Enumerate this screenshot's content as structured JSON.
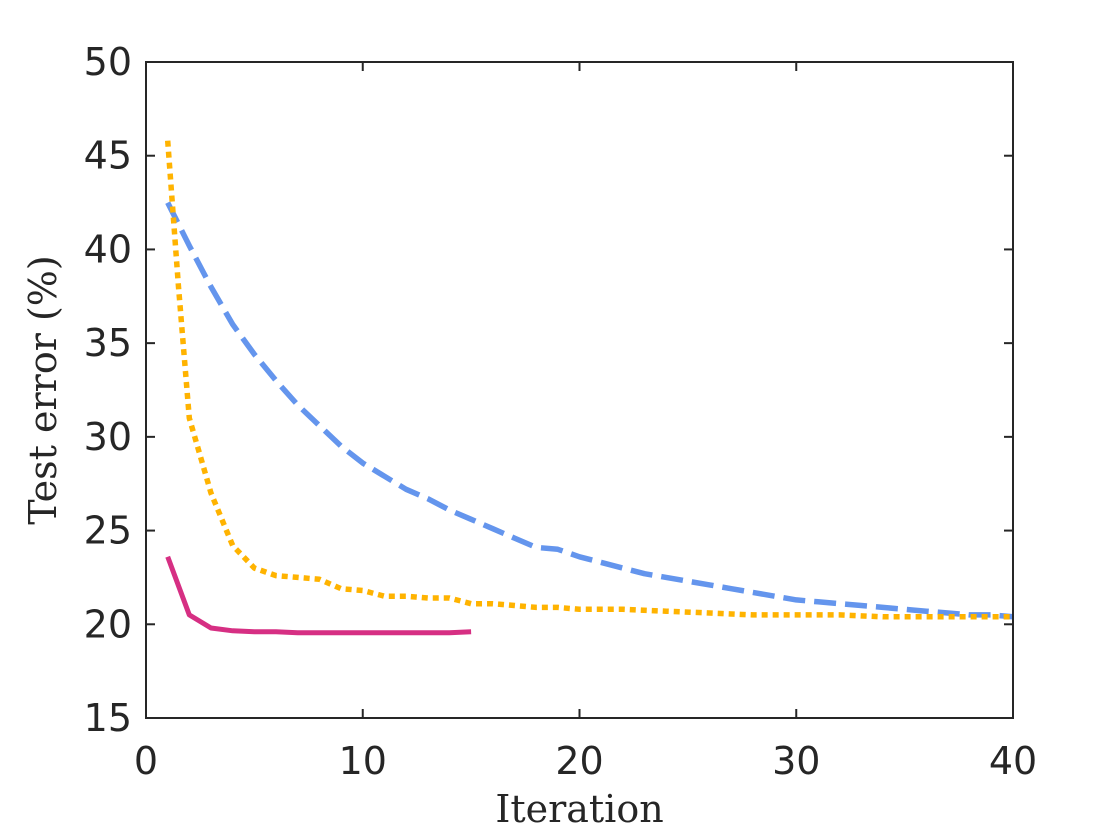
{
  "chart_data": {
    "type": "line",
    "title": "",
    "xlabel": "Iteration",
    "ylabel": "Test error (%)",
    "xlim": [
      0,
      40
    ],
    "ylim": [
      15,
      50
    ],
    "xticks": [
      "0",
      "10",
      "20",
      "30",
      "40"
    ],
    "yticks": [
      "15",
      "20",
      "25",
      "30",
      "35",
      "40",
      "45",
      "50"
    ],
    "grid": false,
    "legend": "none",
    "series": [
      {
        "color": "#6495ED",
        "dash": "dashed",
        "x": [
          1,
          2,
          3,
          4,
          5,
          6,
          7,
          8,
          9,
          10,
          11,
          12,
          13,
          14,
          15,
          16,
          17,
          18,
          19,
          20,
          21,
          22,
          23,
          24,
          25,
          26,
          27,
          28,
          29,
          30,
          31,
          32,
          33,
          34,
          35,
          36,
          37,
          38,
          39,
          40
        ],
        "y": [
          42.5,
          40.2,
          38,
          36,
          34.4,
          33,
          31.7,
          30.6,
          29.5,
          28.6,
          27.9,
          27.2,
          26.7,
          26.1,
          25.6,
          25.1,
          24.6,
          24.1,
          24,
          23.6,
          23.3,
          23,
          22.7,
          22.5,
          22.3,
          22.1,
          21.9,
          21.7,
          21.5,
          21.3,
          21.2,
          21.1,
          21,
          20.9,
          20.8,
          20.7,
          20.6,
          20.5,
          20.5,
          20.4
        ]
      },
      {
        "color": "#FFB300",
        "dash": "dotted",
        "x": [
          1,
          1.5,
          2,
          3,
          4,
          5,
          6,
          7,
          8,
          9,
          10,
          11,
          12,
          13,
          14,
          15,
          16,
          17,
          18,
          19,
          20,
          22,
          24,
          26,
          28,
          30,
          32,
          34,
          36,
          38,
          40
        ],
        "y": [
          45.8,
          38,
          31,
          27,
          24.2,
          23,
          22.6,
          22.5,
          22.4,
          21.9,
          21.8,
          21.5,
          21.5,
          21.4,
          21.4,
          21.1,
          21.1,
          21,
          20.9,
          20.9,
          20.8,
          20.8,
          20.7,
          20.6,
          20.5,
          20.5,
          20.5,
          20.4,
          20.4,
          20.4,
          20.4
        ]
      },
      {
        "color": "#D62F83",
        "dash": "solid",
        "x": [
          1,
          2,
          3,
          4,
          5,
          6,
          7,
          8,
          9,
          10,
          11,
          12,
          13,
          14,
          15
        ],
        "y": [
          23.6,
          20.5,
          19.8,
          19.65,
          19.6,
          19.6,
          19.55,
          19.55,
          19.55,
          19.55,
          19.55,
          19.55,
          19.55,
          19.55,
          19.6
        ]
      }
    ]
  }
}
